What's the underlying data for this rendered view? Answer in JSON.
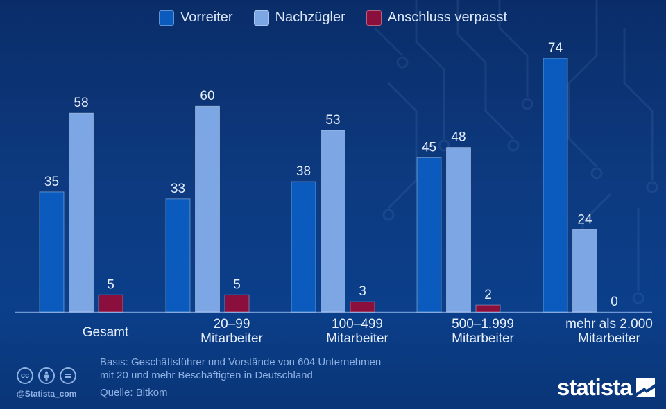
{
  "chart_data": {
    "type": "bar",
    "categories": [
      [
        "Gesamt"
      ],
      [
        "20–99",
        "Mitarbeiter"
      ],
      [
        "100–499",
        "Mitarbeiter"
      ],
      [
        "500–1.999",
        "Mitarbeiter"
      ],
      [
        "mehr als 2.000",
        "Mitarbeiter"
      ]
    ],
    "series": [
      {
        "name": "Vorreiter",
        "color": "#0a5bbd",
        "values": [
          35,
          33,
          38,
          45,
          74
        ]
      },
      {
        "name": "Nachzügler",
        "color": "#7da7e4",
        "values": [
          58,
          60,
          53,
          48,
          24
        ]
      },
      {
        "name": "Anschluss verpasst",
        "color": "#8b0f3c",
        "values": [
          5,
          5,
          3,
          2,
          0
        ]
      }
    ],
    "ylim": [
      0,
      74
    ],
    "legend_position": "top-center",
    "grid": false
  },
  "footer": {
    "basis_line1": "Basis: Geschäftsführer und Vorstände von 604 Unternehmen",
    "basis_line2": "mit 20 und mehr Beschäftigten in Deutschland",
    "source": "Quelle: Bitkom",
    "handle": "@Statista_com",
    "brand": "statista"
  },
  "icons": {
    "cc": "cc-icon",
    "person": "attribution-icon",
    "equals": "no-derivatives-icon"
  }
}
